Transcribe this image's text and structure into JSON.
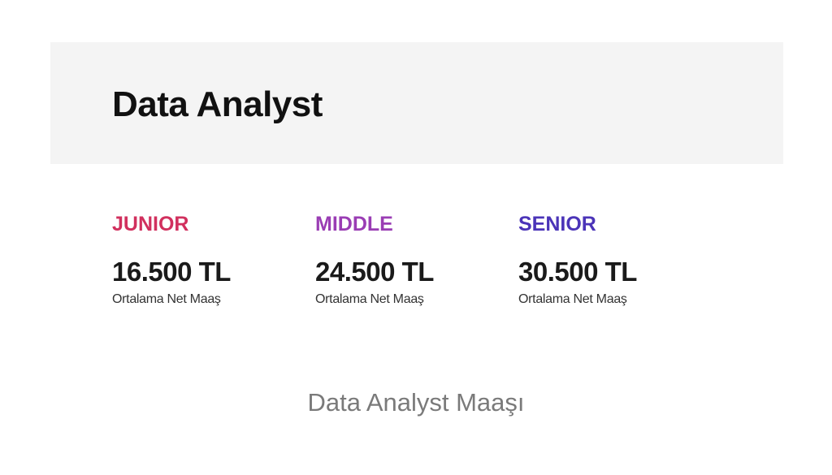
{
  "header": {
    "title": "Data Analyst"
  },
  "levels": [
    {
      "label": "JUNIOR",
      "color": "#d1305e",
      "salary": "16.500 TL",
      "note": "Ortalama Net Maaş"
    },
    {
      "label": "MIDDLE",
      "color": "#9a3db4",
      "salary": "24.500 TL",
      "note": "Ortalama Net Maaş"
    },
    {
      "label": "SENIOR",
      "color": "#4b34b8",
      "salary": "30.500 TL",
      "note": "Ortalama Net Maaş"
    }
  ],
  "caption": "Data Analyst Maaşı"
}
